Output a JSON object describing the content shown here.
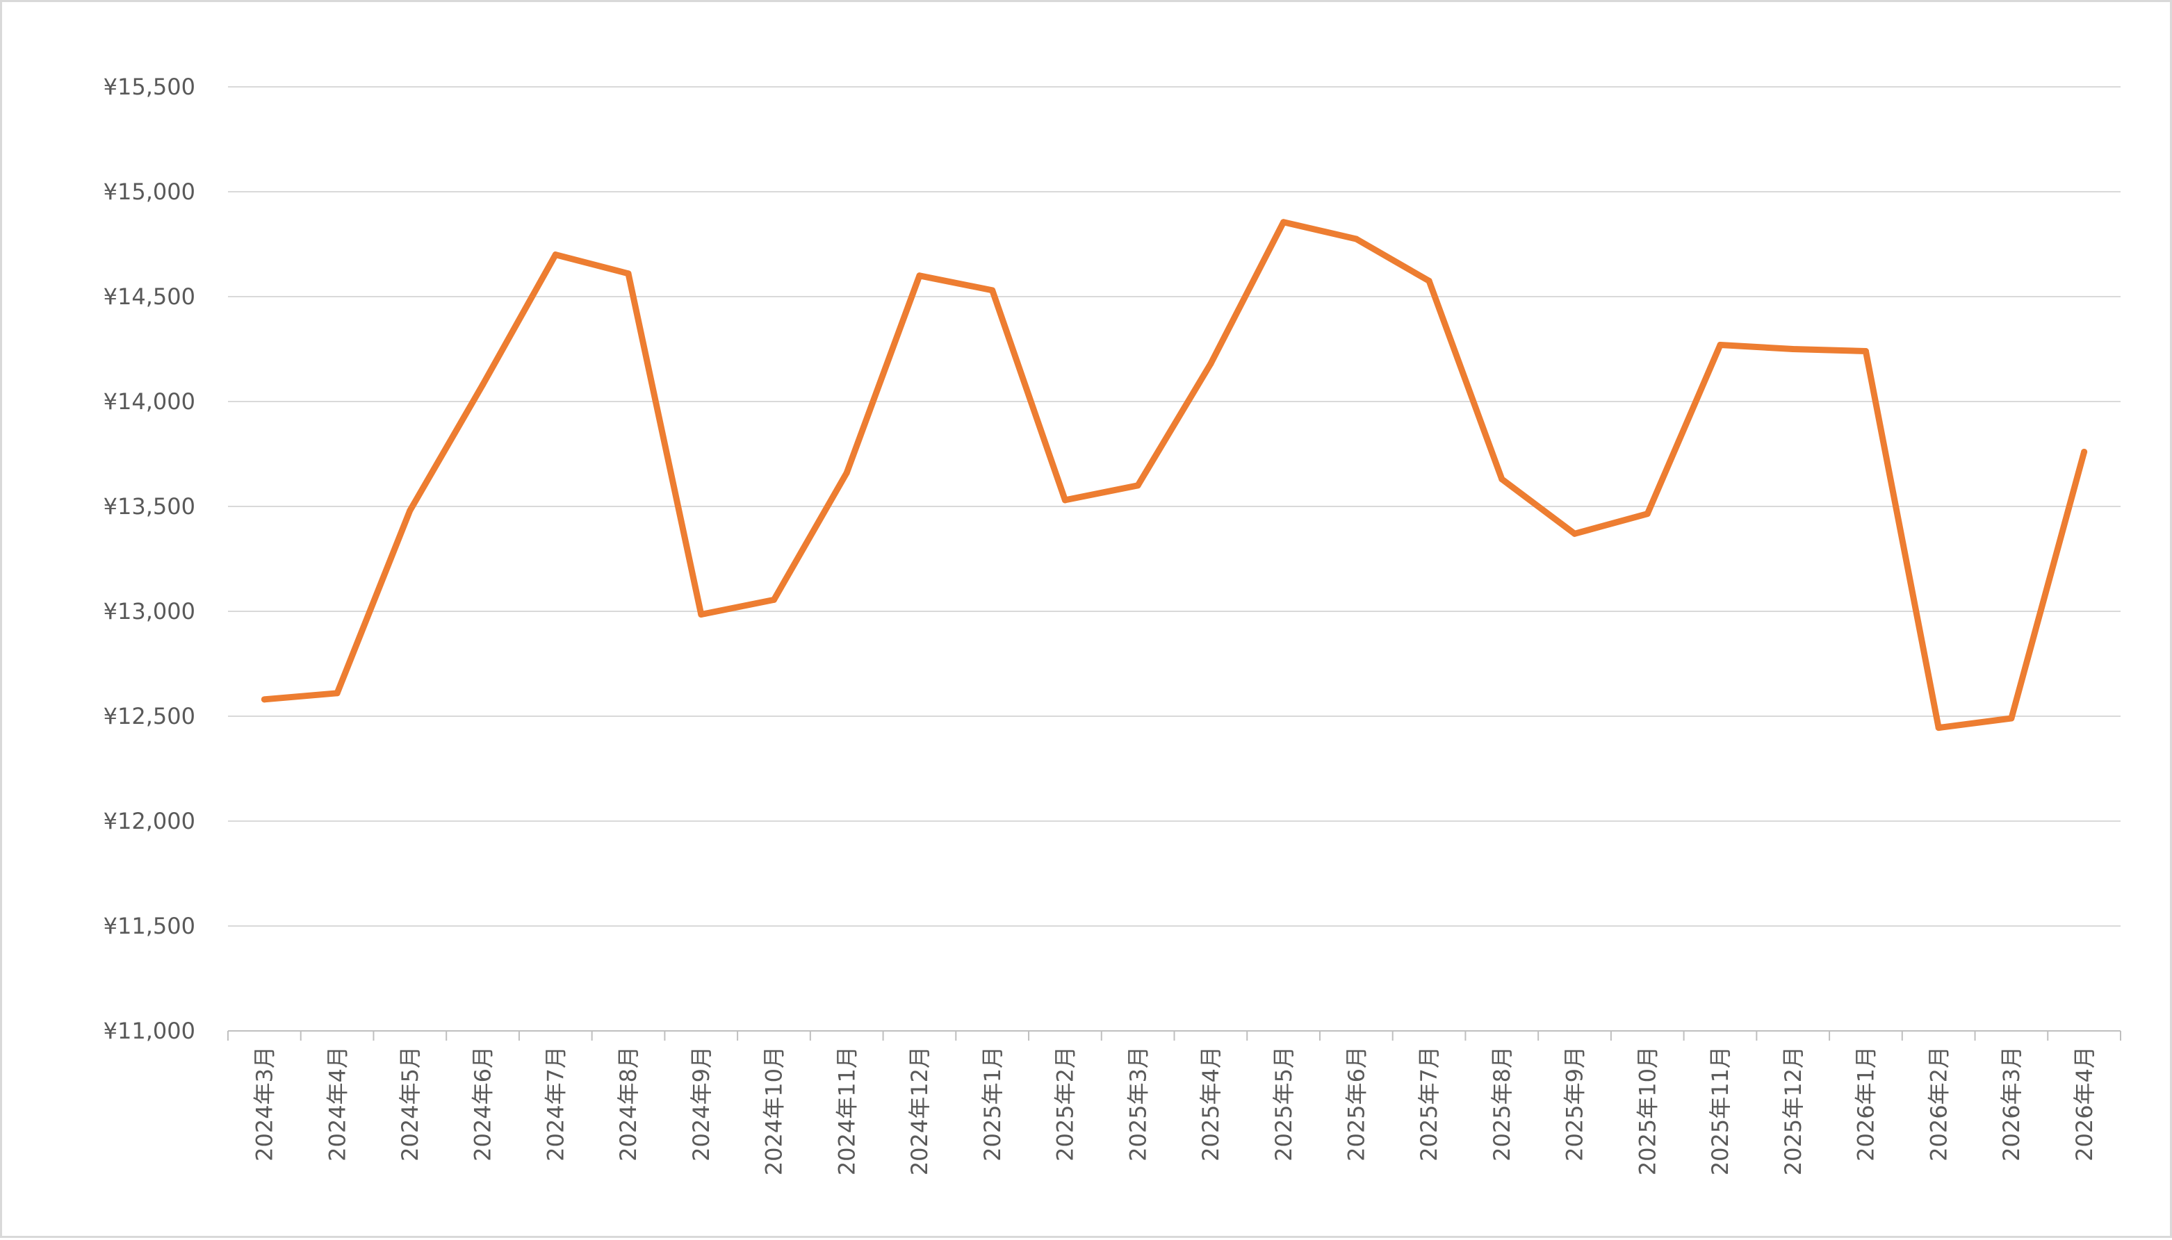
{
  "chart_data": {
    "type": "line",
    "title": "",
    "xlabel": "",
    "ylabel": "",
    "categories": [
      "2024年3月",
      "2024年4月",
      "2024年5月",
      "2024年6月",
      "2024年7月",
      "2024年8月",
      "2024年9月",
      "2024年10月",
      "2024年11月",
      "2024年12月",
      "2025年1月",
      "2025年2月",
      "2025年3月",
      "2025年4月",
      "2025年5月",
      "2025年6月",
      "2025年7月",
      "2025年8月",
      "2025年9月",
      "2025年10月",
      "2025年11月",
      "2025年12月",
      "2026年1月",
      "2026年2月",
      "2026年3月",
      "2026年4月"
    ],
    "series": [
      {
        "values": [
          12580,
          12610,
          13480,
          14080,
          14700,
          14610,
          12985,
          13055,
          13660,
          14600,
          14530,
          13530,
          13600,
          14180,
          14855,
          14775,
          14575,
          13630,
          13370,
          13465,
          14270,
          14250,
          14240,
          12445,
          12490,
          13760
        ],
        "color": "#ED7D31"
      }
    ],
    "ylim": [
      11000,
      15500
    ],
    "yticks": [
      11000,
      11500,
      12000,
      12500,
      13000,
      13500,
      14000,
      14500,
      15000,
      15500
    ],
    "ytick_labels": [
      "¥11,000",
      "¥11,500",
      "¥12,000",
      "¥12,500",
      "¥13,000",
      "¥13,500",
      "¥14,000",
      "¥14,500",
      "¥15,000",
      "¥15,500"
    ],
    "grid": true,
    "legend": "none",
    "colors": {
      "line": "#ED7D31",
      "grid": "#d9d9d9",
      "axis": "#bfbfbf",
      "text": "#595959"
    }
  }
}
